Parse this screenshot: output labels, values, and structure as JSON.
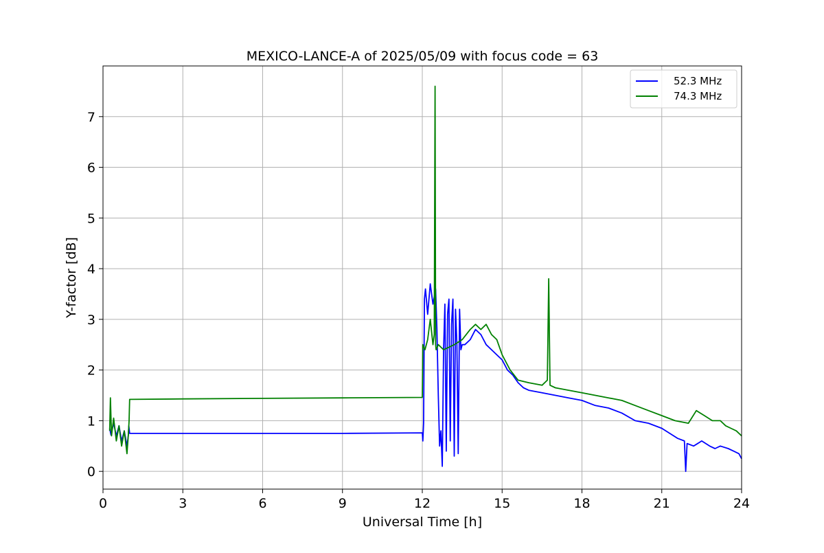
{
  "chart_data": {
    "type": "line",
    "title": "MEXICO-LANCE-A of 2025/05/09 with focus code = 63",
    "xlabel": "Universal Time [h]",
    "ylabel": "Y-factor [dB]",
    "xlim": [
      0,
      24
    ],
    "ylim": [
      -0.35,
      8.0
    ],
    "xticks": [
      0,
      3,
      6,
      9,
      12,
      15,
      18,
      21,
      24
    ],
    "yticks": [
      0,
      1,
      2,
      3,
      4,
      5,
      6,
      7
    ],
    "grid": true,
    "legend": {
      "placement": "top-right"
    },
    "series": [
      {
        "name": "52.3 MHz",
        "color": "#0000ff",
        "x": [
          0.25,
          0.3,
          0.4,
          0.5,
          0.6,
          0.7,
          0.8,
          0.9,
          0.95,
          0.97,
          1.0,
          3.0,
          6.0,
          9.0,
          12.0,
          12.02,
          12.05,
          12.08,
          12.12,
          12.2,
          12.3,
          12.4,
          12.5,
          12.55,
          12.6,
          12.65,
          12.7,
          12.75,
          12.8,
          12.85,
          12.9,
          12.95,
          13.0,
          13.05,
          13.1,
          13.15,
          13.2,
          13.25,
          13.3,
          13.35,
          13.4,
          13.45,
          13.5,
          13.6,
          13.8,
          14.0,
          14.2,
          14.4,
          14.6,
          14.8,
          15.0,
          15.2,
          15.4,
          15.6,
          15.8,
          16.0,
          16.5,
          17.0,
          17.5,
          18.0,
          18.5,
          19.0,
          19.5,
          20.0,
          20.5,
          21.0,
          21.3,
          21.6,
          21.85,
          21.9,
          21.95,
          22.2,
          22.5,
          22.8,
          23.0,
          23.2,
          23.5,
          23.7,
          23.9,
          24.0
        ],
        "values": [
          0.85,
          0.72,
          0.95,
          0.7,
          0.9,
          0.6,
          0.8,
          0.5,
          0.7,
          0.9,
          0.75,
          0.75,
          0.75,
          0.75,
          0.76,
          0.6,
          0.95,
          3.4,
          3.6,
          3.1,
          3.7,
          3.3,
          3.6,
          2.8,
          1.5,
          0.5,
          0.8,
          0.1,
          2.4,
          3.3,
          0.4,
          3.1,
          3.4,
          0.6,
          2.9,
          3.4,
          0.3,
          3.2,
          2.5,
          0.35,
          3.2,
          2.4,
          2.5,
          2.5,
          2.6,
          2.8,
          2.7,
          2.5,
          2.4,
          2.3,
          2.2,
          2.0,
          1.9,
          1.75,
          1.65,
          1.6,
          1.55,
          1.5,
          1.45,
          1.4,
          1.3,
          1.25,
          1.15,
          1.0,
          0.95,
          0.85,
          0.75,
          0.65,
          0.6,
          0.0,
          0.55,
          0.5,
          0.6,
          0.5,
          0.45,
          0.5,
          0.45,
          0.4,
          0.35,
          0.25
        ]
      },
      {
        "name": "74.3 MHz",
        "color": "#008000",
        "x": [
          0.25,
          0.28,
          0.32,
          0.4,
          0.5,
          0.6,
          0.7,
          0.8,
          0.9,
          0.95,
          0.98,
          1.0,
          3.0,
          6.0,
          9.0,
          12.0,
          12.02,
          12.1,
          12.2,
          12.3,
          12.4,
          12.45,
          12.48,
          12.5,
          12.52,
          12.6,
          12.8,
          13.0,
          13.2,
          13.5,
          13.8,
          14.0,
          14.2,
          14.4,
          14.6,
          14.8,
          15.0,
          15.3,
          15.6,
          16.0,
          16.5,
          16.7,
          16.75,
          16.8,
          17.0,
          17.5,
          18.0,
          18.5,
          19.0,
          19.5,
          20.0,
          20.5,
          21.0,
          21.5,
          22.0,
          22.3,
          22.6,
          22.9,
          23.2,
          23.4,
          23.6,
          23.8,
          24.0
        ],
        "values": [
          0.8,
          1.45,
          0.7,
          1.05,
          0.6,
          0.9,
          0.5,
          0.8,
          0.35,
          0.7,
          1.0,
          1.42,
          1.43,
          1.44,
          1.45,
          1.46,
          2.5,
          2.4,
          2.6,
          3.0,
          2.5,
          2.7,
          7.6,
          2.5,
          2.4,
          2.5,
          2.4,
          2.45,
          2.5,
          2.6,
          2.8,
          2.9,
          2.8,
          2.9,
          2.7,
          2.6,
          2.3,
          2.0,
          1.8,
          1.75,
          1.7,
          1.8,
          3.8,
          1.7,
          1.65,
          1.6,
          1.55,
          1.5,
          1.45,
          1.4,
          1.3,
          1.2,
          1.1,
          1.0,
          0.95,
          1.2,
          1.1,
          1.0,
          1.0,
          0.9,
          0.85,
          0.8,
          0.7
        ]
      }
    ]
  }
}
